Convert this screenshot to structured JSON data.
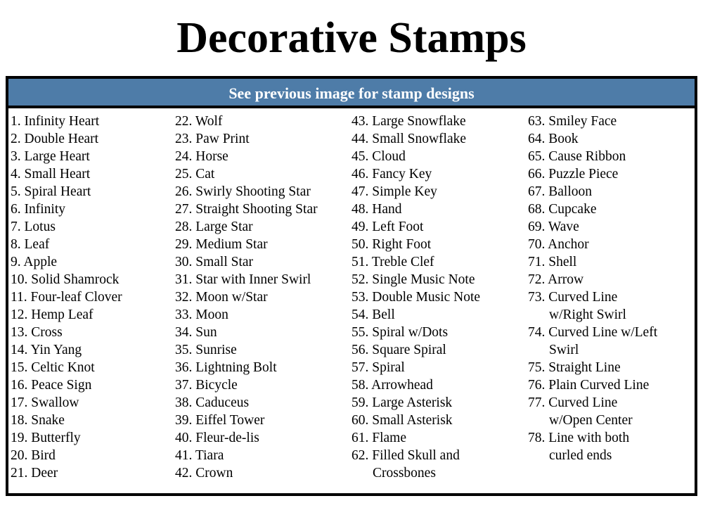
{
  "title": "Decorative Stamps",
  "header_bar": "See previous image for stamp designs",
  "columns": [
    [
      {
        "text": "1. Infinity Heart"
      },
      {
        "text": "2. Double Heart"
      },
      {
        "text": "3. Large Heart"
      },
      {
        "text": "4. Small Heart"
      },
      {
        "text": "5. Spiral Heart"
      },
      {
        "text": "6. Infinity"
      },
      {
        "text": "7. Lotus"
      },
      {
        "text": "8. Leaf"
      },
      {
        "text": "9. Apple"
      },
      {
        "text": "10. Solid Shamrock"
      },
      {
        "text": "11. Four-leaf Clover"
      },
      {
        "text": "12. Hemp Leaf"
      },
      {
        "text": "13. Cross"
      },
      {
        "text": "14. Yin Yang"
      },
      {
        "text": "15. Celtic Knot"
      },
      {
        "text": "16. Peace Sign"
      },
      {
        "text": "17. Swallow"
      },
      {
        "text": "18. Snake"
      },
      {
        "text": "19. Butterfly"
      },
      {
        "text": "20. Bird"
      },
      {
        "text": "21. Deer"
      }
    ],
    [
      {
        "text": "22. Wolf"
      },
      {
        "text": "23. Paw Print"
      },
      {
        "text": "24. Horse"
      },
      {
        "text": "25. Cat"
      },
      {
        "text": "26. Swirly Shooting Star"
      },
      {
        "text": "27. Straight Shooting Star"
      },
      {
        "text": "28. Large Star"
      },
      {
        "text": "29. Medium Star"
      },
      {
        "text": "30. Small Star"
      },
      {
        "text": "31. Star with Inner Swirl"
      },
      {
        "text": "32. Moon w/Star"
      },
      {
        "text": "33. Moon"
      },
      {
        "text": "34. Sun"
      },
      {
        "text": "35. Sunrise"
      },
      {
        "text": "36. Lightning Bolt"
      },
      {
        "text": "37. Bicycle"
      },
      {
        "text": "38. Caduceus"
      },
      {
        "text": "39. Eiffel Tower"
      },
      {
        "text": "40. Fleur-de-lis"
      },
      {
        "text": "41. Tiara"
      },
      {
        "text": "42. Crown"
      }
    ],
    [
      {
        "text": "43. Large Snowflake"
      },
      {
        "text": "44. Small Snowflake"
      },
      {
        "text": "45. Cloud"
      },
      {
        "text": "46. Fancy Key"
      },
      {
        "text": "47. Simple Key"
      },
      {
        "text": "48. Hand"
      },
      {
        "text": "49. Left Foot"
      },
      {
        "text": "50. Right Foot"
      },
      {
        "text": "51. Treble Clef"
      },
      {
        "text": "52. Single Music Note"
      },
      {
        "text": "53. Double Music Note"
      },
      {
        "text": "54. Bell"
      },
      {
        "text": "55. Spiral w/Dots"
      },
      {
        "text": "56. Square Spiral"
      },
      {
        "text": "57. Spiral"
      },
      {
        "text": "58. Arrowhead"
      },
      {
        "text": "59. Large Asterisk"
      },
      {
        "text": "60. Small Asterisk"
      },
      {
        "text": "61. Flame"
      },
      {
        "text": "62. Filled Skull and",
        "cont": "Crossbones"
      }
    ],
    [
      {
        "text": "63. Smiley Face"
      },
      {
        "text": "64. Book"
      },
      {
        "text": "65. Cause Ribbon"
      },
      {
        "text": "66. Puzzle Piece"
      },
      {
        "text": "67. Balloon"
      },
      {
        "text": "68. Cupcake"
      },
      {
        "text": "69. Wave"
      },
      {
        "text": "70. Anchor"
      },
      {
        "text": "71. Shell"
      },
      {
        "text": "72. Arrow"
      },
      {
        "text": "73. Curved Line",
        "cont": "w/Right Swirl"
      },
      {
        "text": "74. Curved Line w/Left",
        "cont": "Swirl"
      },
      {
        "text": "75. Straight Line"
      },
      {
        "text": "76. Plain Curved Line"
      },
      {
        "text": "77. Curved Line",
        "cont": "w/Open  Center"
      },
      {
        "text": "78. Line with both",
        "cont": "curled ends"
      }
    ]
  ],
  "colors": {
    "header_bar": "#4e7ca8",
    "border": "#000000"
  }
}
